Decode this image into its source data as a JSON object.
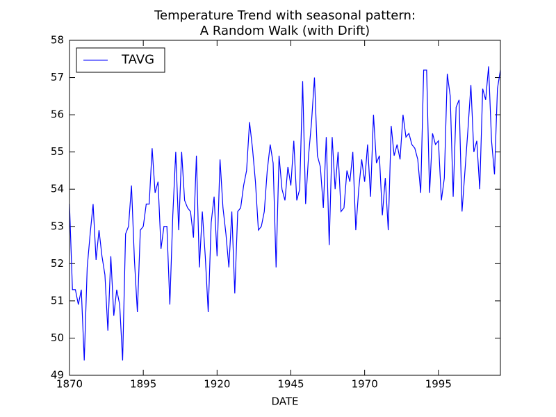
{
  "chart_data": {
    "type": "line",
    "title": "Temperature Trend with seasonal pattern:\nA Random Walk (with Drift)",
    "xlabel": "DATE",
    "x": [
      1870,
      1871,
      1872,
      1873,
      1874,
      1875,
      1876,
      1877,
      1878,
      1879,
      1880,
      1881,
      1882,
      1883,
      1884,
      1885,
      1886,
      1887,
      1888,
      1889,
      1890,
      1891,
      1892,
      1893,
      1894,
      1895,
      1896,
      1897,
      1898,
      1899,
      1900,
      1901,
      1902,
      1903,
      1904,
      1905,
      1906,
      1907,
      1908,
      1909,
      1910,
      1911,
      1912,
      1913,
      1914,
      1915,
      1916,
      1917,
      1918,
      1919,
      1920,
      1921,
      1922,
      1923,
      1924,
      1925,
      1926,
      1927,
      1928,
      1929,
      1930,
      1931,
      1932,
      1933,
      1934,
      1935,
      1936,
      1937,
      1938,
      1939,
      1940,
      1941,
      1942,
      1943,
      1944,
      1945,
      1946,
      1947,
      1948,
      1949,
      1950,
      1951,
      1952,
      1953,
      1954,
      1955,
      1956,
      1957,
      1958,
      1959,
      1960,
      1961,
      1962,
      1963,
      1964,
      1965,
      1966,
      1967,
      1968,
      1969,
      1970,
      1971,
      1972,
      1973,
      1974,
      1975,
      1976,
      1977,
      1978,
      1979,
      1980,
      1981,
      1982,
      1983,
      1984,
      1985,
      1986,
      1987,
      1988,
      1989,
      1990,
      1991,
      1992,
      1993,
      1994,
      1995,
      1996,
      1997,
      1998,
      1999,
      2000,
      2001,
      2002,
      2003,
      2004,
      2005,
      2006,
      2007,
      2008,
      2009,
      2010,
      2011,
      2012,
      2013,
      2014,
      2015,
      2016
    ],
    "series": [
      {
        "name": "TAVG",
        "color": "#0000ff",
        "values": [
          53.6,
          51.3,
          51.3,
          50.9,
          51.3,
          49.4,
          51.9,
          52.8,
          53.6,
          52.1,
          52.9,
          52.2,
          51.7,
          50.2,
          52.2,
          50.6,
          51.3,
          50.9,
          49.4,
          52.8,
          53.0,
          54.1,
          52.1,
          50.7,
          52.9,
          53.0,
          53.6,
          53.6,
          55.1,
          53.9,
          54.2,
          52.4,
          53.0,
          53.0,
          50.9,
          53.3,
          55.0,
          52.9,
          55.0,
          53.7,
          53.5,
          53.4,
          52.7,
          54.9,
          51.9,
          53.4,
          52.2,
          50.7,
          53.1,
          53.8,
          52.2,
          54.8,
          53.5,
          52.8,
          51.9,
          53.4,
          51.2,
          53.4,
          53.5,
          54.1,
          54.5,
          55.8,
          55.1,
          54.2,
          52.9,
          53.0,
          53.4,
          54.5,
          55.2,
          54.7,
          51.9,
          54.9,
          54.0,
          53.7,
          54.6,
          54.1,
          55.3,
          53.7,
          54.0,
          56.9,
          53.6,
          54.9,
          55.8,
          57.0,
          54.9,
          54.6,
          53.5,
          55.4,
          52.5,
          55.4,
          54.0,
          55.0,
          53.4,
          53.5,
          54.5,
          54.2,
          55.0,
          52.9,
          54.0,
          54.8,
          54.2,
          55.2,
          53.8,
          56.0,
          54.7,
          54.9,
          53.3,
          54.3,
          52.9,
          55.7,
          54.9,
          55.2,
          54.8,
          56.0,
          55.4,
          55.5,
          55.2,
          55.1,
          54.8,
          53.9,
          57.2,
          57.2,
          53.9,
          55.5,
          55.2,
          55.3,
          53.7,
          54.3,
          57.1,
          56.5,
          53.8,
          56.2,
          56.4,
          53.4,
          54.5,
          55.6,
          56.8,
          55.0,
          55.3,
          54.0,
          56.7,
          56.4,
          57.3,
          55.3,
          54.4,
          56.7,
          57.2
        ]
      }
    ],
    "xlim": [
      1870,
      2016
    ],
    "xticks": [
      1870,
      1895,
      1920,
      1945,
      1970,
      1995
    ],
    "ylim": [
      49,
      58
    ],
    "yticks": [
      49,
      50,
      51,
      52,
      53,
      54,
      55,
      56,
      57,
      58
    ],
    "legend": "upper-left"
  }
}
